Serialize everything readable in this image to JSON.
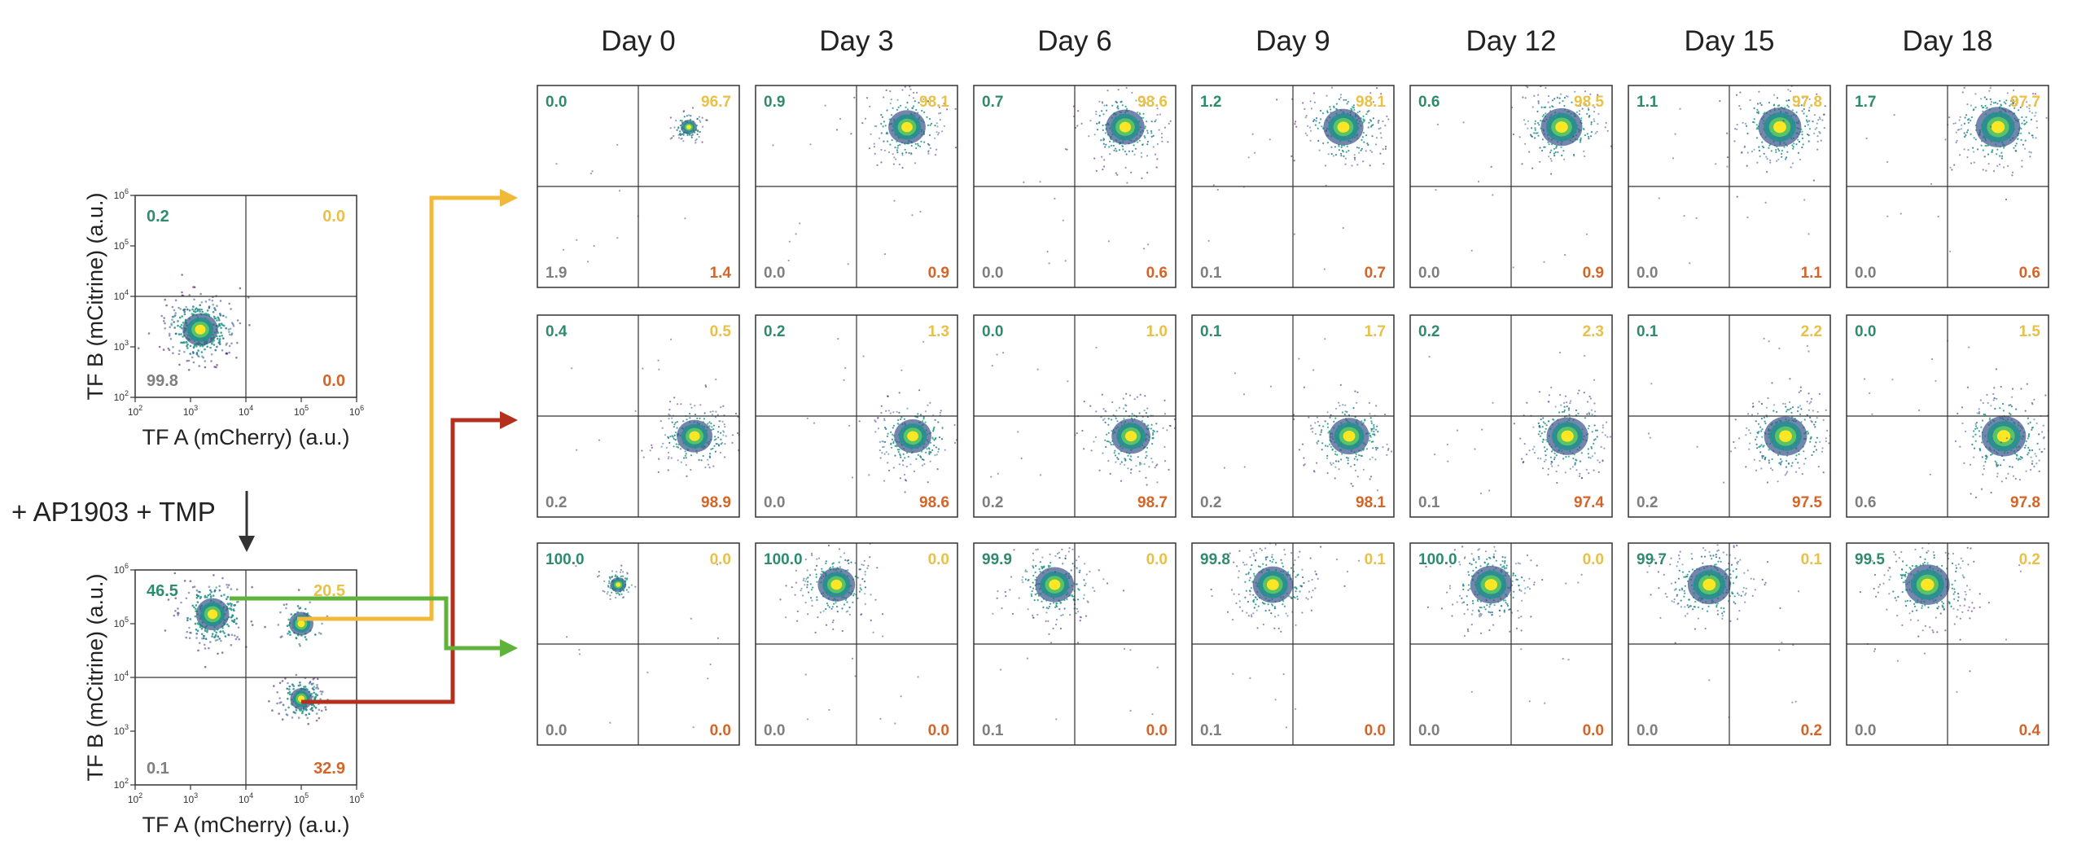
{
  "colors": {
    "tl": "#2e8b6e",
    "tr": "#e9c04a",
    "bl": "#7f7f7f",
    "br": "#d4652a",
    "arrow_yellow": "#f0b93a",
    "arrow_red": "#b5301c",
    "arrow_green": "#5fb33a"
  },
  "treatment_label": "+ AP1903 + TMP",
  "chart_data": [
    {
      "type": "scatter",
      "id": "before",
      "xlabel": "TF A (mCherry) (a.u.)",
      "ylabel": "TF B (mCitrine) (a.u.)",
      "xscale": "log",
      "yscale": "log",
      "xlim": [
        100,
        1000000
      ],
      "ylim": [
        100,
        1000000
      ],
      "gates": {
        "x": 10000,
        "y": 10000
      },
      "quadrants": {
        "tl": "0.2",
        "tr": "0.0",
        "bl": "99.8",
        "br": "0.0"
      },
      "populations": [
        {
          "x": 1500,
          "y": 2200,
          "spread": 0.32,
          "n": 340
        }
      ]
    },
    {
      "type": "scatter",
      "id": "after",
      "xlabel": "TF A (mCherry) (a.u.)",
      "ylabel": "TF B (mCitrine) (a.u.)",
      "xscale": "log",
      "yscale": "log",
      "xlim": [
        100,
        1000000
      ],
      "ylim": [
        100,
        1000000
      ],
      "gates": {
        "x": 10000,
        "y": 10000
      },
      "quadrants": {
        "tl": "46.5",
        "tr": "20.5",
        "bl": "0.1",
        "br": "32.9"
      },
      "populations": [
        {
          "x": 2500,
          "y": 150000,
          "spread": 0.3,
          "n": 260
        },
        {
          "x": 100000,
          "y": 100000,
          "spread": 0.22,
          "n": 80
        },
        {
          "x": 100000,
          "y": 4000,
          "spread": 0.2,
          "n": 170
        }
      ]
    },
    {
      "type": "scatter",
      "id": "time-course",
      "days": [
        "Day 0",
        "Day 3",
        "Day 6",
        "Day 9",
        "Day 12",
        "Day 15",
        "Day 18"
      ],
      "rows": [
        {
          "population": {
            "x": 100000,
            "y": 150000
          },
          "quadrants": {
            "tl": [
              "0.0",
              "0.9",
              "0.7",
              "1.2",
              "0.6",
              "1.1",
              "1.7"
            ],
            "tr": [
              "96.7",
              "98.1",
              "98.6",
              "98.1",
              "98.5",
              "97.8",
              "97.7"
            ],
            "bl": [
              "1.9",
              "0.0",
              "0.0",
              "0.1",
              "0.0",
              "0.0",
              "0.0"
            ],
            "br": [
              "1.4",
              "0.9",
              "0.6",
              "0.7",
              "0.9",
              "1.1",
              "0.6"
            ]
          }
        },
        {
          "population": {
            "x": 130000,
            "y": 4000
          },
          "quadrants": {
            "tl": [
              "0.4",
              "0.2",
              "0.0",
              "0.1",
              "0.2",
              "0.1",
              "0.0"
            ],
            "tr": [
              "0.5",
              "1.3",
              "1.0",
              "1.7",
              "2.3",
              "2.2",
              "1.5"
            ],
            "bl": [
              "0.2",
              "0.0",
              "0.2",
              "0.2",
              "0.1",
              "0.2",
              "0.6"
            ],
            "br": [
              "98.9",
              "98.6",
              "98.7",
              "98.1",
              "97.4",
              "97.5",
              "97.8"
            ]
          }
        },
        {
          "population": {
            "x": 4000,
            "y": 150000
          },
          "quadrants": {
            "tl": [
              "100.0",
              "100.0",
              "99.9",
              "99.8",
              "100.0",
              "99.7",
              "99.5"
            ],
            "tr": [
              "0.0",
              "0.0",
              "0.0",
              "0.1",
              "0.0",
              "0.1",
              "0.2"
            ],
            "bl": [
              "0.0",
              "0.0",
              "0.1",
              "0.1",
              "0.0",
              "0.0",
              "0.0"
            ],
            "br": [
              "0.0",
              "0.0",
              "0.0",
              "0.0",
              "0.0",
              "0.2",
              "0.4"
            ]
          }
        }
      ]
    }
  ]
}
